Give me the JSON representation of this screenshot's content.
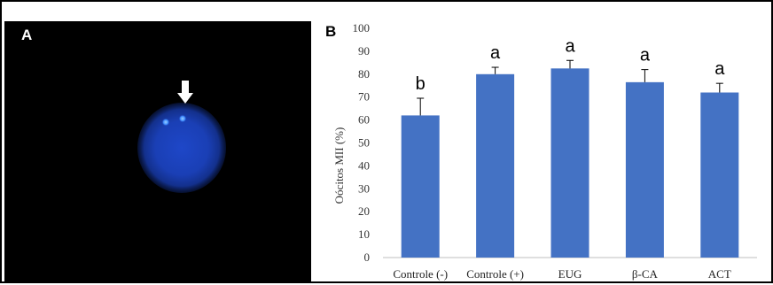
{
  "panel_a": {
    "label": "A",
    "image": {
      "description_icon": "oocyte-micrograph",
      "arrow_icon": "down-arrow-icon"
    }
  },
  "panel_b": {
    "label": "B"
  },
  "chart_data": {
    "type": "bar",
    "ylabel": "Oócitos MII (%)",
    "xlabel": "",
    "ylim": [
      0,
      100
    ],
    "yticks": [
      0,
      10,
      20,
      30,
      40,
      50,
      60,
      70,
      80,
      90,
      100
    ],
    "categories": [
      "Controle (-)",
      "Controle (+)",
      "EUG",
      "β-CA",
      "ACT"
    ],
    "values": [
      62,
      80,
      82.5,
      76.5,
      72
    ],
    "error_plus": [
      7.5,
      3,
      3.5,
      5.5,
      4
    ],
    "significance": [
      "b",
      "a",
      "a",
      "a",
      "a"
    ],
    "bar_color": "#4472c4",
    "grid": false
  }
}
